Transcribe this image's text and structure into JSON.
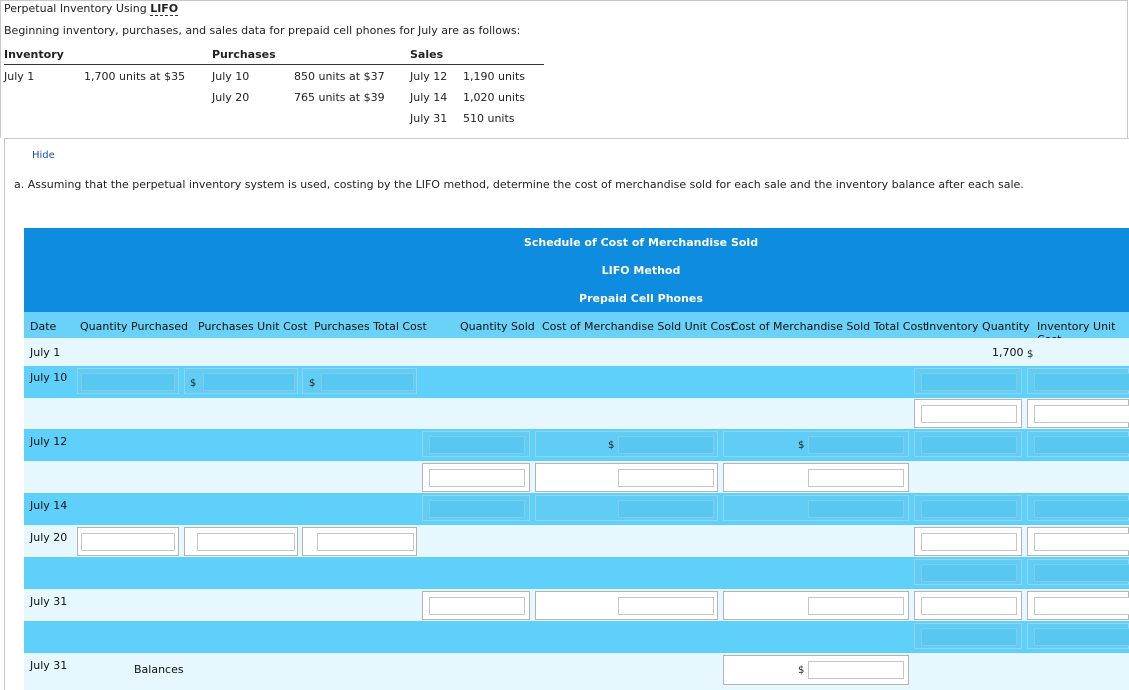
{
  "title_prefix": "Perpetual Inventory Using ",
  "title_method": "LIFO",
  "intro": "Beginning inventory, purchases, and sales data for prepaid cell phones for July are as follows:",
  "data_table": {
    "headers": {
      "inventory": "Inventory",
      "purchases": "Purchases",
      "sales": "Sales"
    },
    "inventory": {
      "date": "July 1",
      "desc": "1,700 units at $35"
    },
    "purchases": [
      {
        "date": "July 10",
        "desc": "850 units at $37"
      },
      {
        "date": "July 20",
        "desc": "765 units at $39"
      }
    ],
    "sales": [
      {
        "date": "July 12",
        "units": "1,190 units"
      },
      {
        "date": "July 14",
        "units": "1,020 units"
      },
      {
        "date": "July 31",
        "units": "510 units"
      }
    ]
  },
  "hide_link": "Hide",
  "question": "a.  Assuming that the perpetual inventory system is used, costing by the LIFO method, determine the cost of merchandise sold for each sale and the inventory balance after each sale.",
  "schedule": {
    "title1": "Schedule of Cost of Merchandise Sold",
    "title2": "LIFO Method",
    "title3": "Prepaid Cell Phones",
    "columns": {
      "date": "Date",
      "qty_purchased": "Quantity Purchased",
      "purch_unit_cost": "Purchases Unit Cost",
      "purch_total_cost": "Purchases Total Cost",
      "qty_sold": "Quantity Sold",
      "cms_unit_cost": "Cost of Merchandise Sold Unit Cost",
      "cms_total_cost": "Cost of Merchandise Sold Total Cost",
      "inv_qty": "Inventory Quantity",
      "inv_unit_cost": "Inventory Unit Cost"
    },
    "rows": {
      "july1": "July 1",
      "july10": "July 10",
      "july12": "July 12",
      "july14": "July 14",
      "july20": "July 20",
      "july31": "July 31",
      "july31b": "July 31"
    },
    "july1_inventory_qty": "1,700",
    "currency": "$",
    "balances_label": "Balances"
  }
}
